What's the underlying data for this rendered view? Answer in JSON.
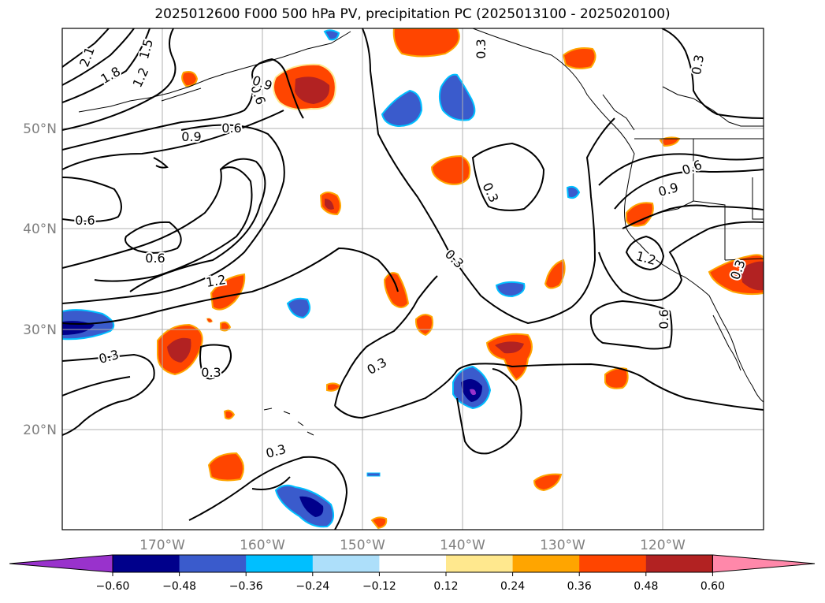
{
  "title": "2025012600 F000 500 hPa PV, precipitation PC (2025013100 - 2025020100)",
  "map": {
    "lat_labels": [
      "50°N",
      "40°N",
      "30°N",
      "20°N"
    ],
    "lon_labels": [
      "170°W",
      "160°W",
      "150°W",
      "140°W",
      "130°W",
      "120°W"
    ]
  },
  "contour_labels": [
    {
      "text": "2.1",
      "rot": -70
    },
    {
      "text": "1.8",
      "rot": -30
    },
    {
      "text": "1.5",
      "rot": -75
    },
    {
      "text": "1.2",
      "rot": -65
    },
    {
      "text": "0.6",
      "rot": 0
    },
    {
      "text": "0.9",
      "rot": 0
    },
    {
      "text": "0.6",
      "rot": 70
    },
    {
      "text": "0.9",
      "rot": 20
    },
    {
      "text": "0.3",
      "rot": -80
    },
    {
      "text": "0.6",
      "rot": 0
    },
    {
      "text": "0.6",
      "rot": 0
    },
    {
      "text": "1.2",
      "rot": -10
    },
    {
      "text": "0.3",
      "rot": 65
    },
    {
      "text": "0.3",
      "rot": 45
    },
    {
      "text": "0.3",
      "rot": -30
    },
    {
      "text": "0.3",
      "rot": -15
    },
    {
      "text": "0.3",
      "rot": 0
    },
    {
      "text": "0.3",
      "rot": -15
    },
    {
      "text": "0.9",
      "rot": -15
    },
    {
      "text": "0.6",
      "rot": -20
    },
    {
      "text": "1.2",
      "rot": 15
    },
    {
      "text": "0.6",
      "rot": -90
    },
    {
      "text": "0.3",
      "rot": -70
    },
    {
      "text": "0.3",
      "rot": -90
    }
  ],
  "colorbar": {
    "colors": [
      "#9932CC",
      "#00008B",
      "#3A5BCC",
      "#00BFFF",
      "#ADDFFA",
      "#FFFFFF",
      "#FFE88E",
      "#FFA500",
      "#FF4500",
      "#B22222",
      "#FF88AA"
    ],
    "ticks": [
      "−0.60",
      "−0.48",
      "−0.36",
      "−0.24",
      "−0.12",
      "0.12",
      "0.24",
      "0.36",
      "0.48",
      "0.60"
    ]
  }
}
